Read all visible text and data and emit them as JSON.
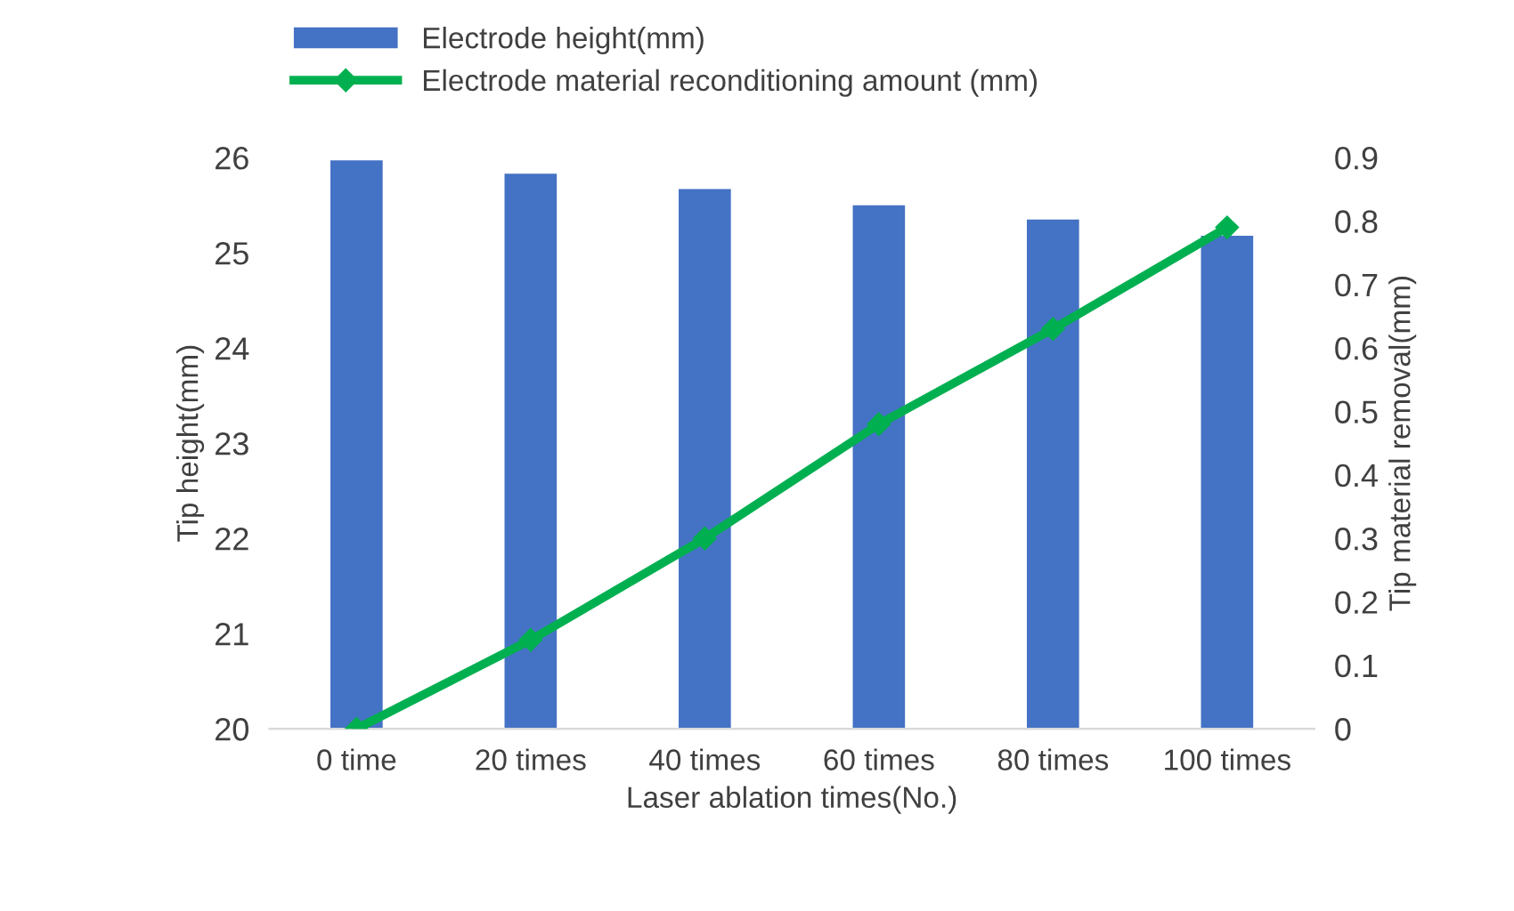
{
  "chart_data": {
    "type": "bar",
    "categories": [
      "0 time",
      "20 times",
      "40 times",
      "60 times",
      "80 times",
      "100 times"
    ],
    "xlabel": "Laser ablation times(No.)",
    "ylabel": "Tip height(mm)",
    "y2label": "Tip material removal(mm)",
    "ylim": [
      20,
      26
    ],
    "yticks": [
      20,
      21,
      22,
      23,
      24,
      25,
      26
    ],
    "y2lim": [
      0,
      0.9
    ],
    "y2ticks": [
      0,
      0.1,
      0.2,
      0.3,
      0.4,
      0.5,
      0.6,
      0.7,
      0.8,
      0.9
    ],
    "grid": false,
    "legend": "top",
    "series": [
      {
        "name": "Electrode height(mm)",
        "color": "#4472c4",
        "values": [
          25.97,
          25.83,
          25.67,
          25.5,
          25.35,
          25.18
        ]
      },
      {
        "name": "Electrode material reconditioning amount (mm)",
        "type": "line",
        "axis": "y2",
        "color": "#00b050",
        "marker": "diamond",
        "values": [
          0,
          0.14,
          0.3,
          0.48,
          0.63,
          0.79
        ]
      }
    ]
  }
}
